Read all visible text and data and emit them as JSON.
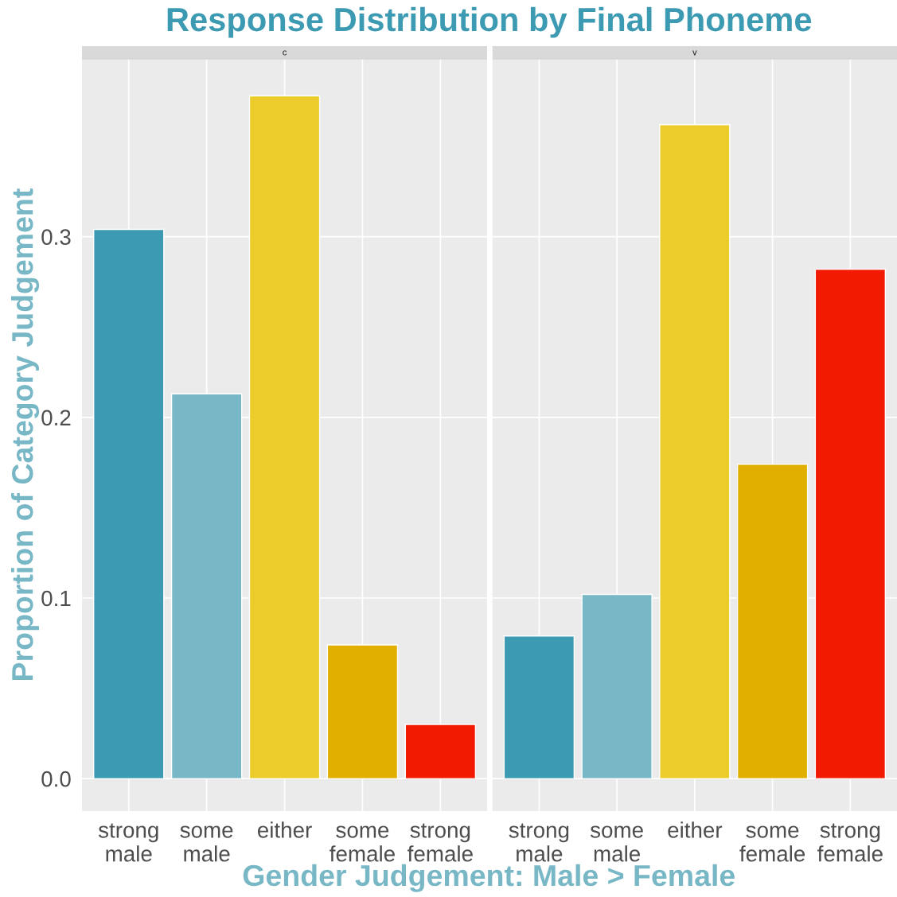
{
  "chart_data": [
    {
      "type": "bar",
      "title": "Response Distribution by Final Phoneme",
      "subtitle": "c",
      "xlabel": "Gender Judgement: Male > Female",
      "ylabel": "Proportion of Category Judgement",
      "categories": [
        "strong\nmale",
        "some\nmale",
        "either",
        "some\nfemale",
        "strong\nfemale"
      ],
      "values": [
        0.304,
        0.213,
        0.378,
        0.074,
        0.03
      ],
      "colors": [
        "#3c9ab2",
        "#78b7c5",
        "#ebcc2a",
        "#e1af00",
        "#f21a00"
      ],
      "ylim": [
        -0.018,
        0.398
      ],
      "yticks": [
        {
          "value": 0,
          "label": "0.0"
        },
        0.1,
        0.2,
        0.3
      ],
      "grid": true
    },
    {
      "type": "bar",
      "subtitle": "v",
      "categories": [
        "strong\nmale",
        "some\nmale",
        "either",
        "some\nfemale",
        "strong\nfemale"
      ],
      "values": [
        0.079,
        0.102,
        0.362,
        0.174,
        0.282
      ],
      "colors": [
        "#3c9ab2",
        "#78b7c5",
        "#ebcc2a",
        "#e1af00",
        "#f21a00"
      ],
      "ylim": [
        -0.018,
        0.398
      ],
      "yticks": [
        0,
        0.1,
        0.2,
        0.3
      ],
      "grid": true,
      "tick_labels": "x"
    }
  ]
}
